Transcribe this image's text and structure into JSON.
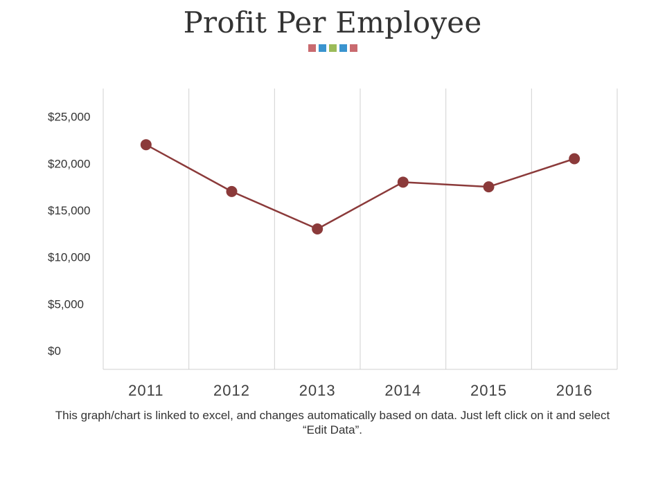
{
  "page": {
    "title": "Profit Per Employee",
    "note": "This graph/chart is linked to excel, and changes automatically based on data. Just left click on it and select “Edit Data”."
  },
  "decor": {
    "dot_colors": [
      "#c96a6f",
      "#3a94cf",
      "#9bbb59",
      "#3a94cf",
      "#c96a6f"
    ]
  },
  "colors": {
    "series": "#8b3a3a",
    "grid": "#d0d0d0",
    "axis_text": "#333333",
    "x_tick_text": "#404040"
  },
  "chart_data": {
    "type": "line",
    "title": "Profit Per Employee",
    "xlabel": "",
    "ylabel": "",
    "categories": [
      "2011",
      "2012",
      "2013",
      "2014",
      "2015",
      "2016"
    ],
    "series": [
      {
        "name": "Profit Per Employee",
        "values": [
          22000,
          17000,
          13000,
          18000,
          17500,
          20500
        ]
      }
    ],
    "ylim": [
      -2000,
      28000
    ],
    "yticks": [
      0,
      5000,
      10000,
      15000,
      20000,
      25000
    ],
    "ytick_labels": [
      "$0",
      "$5,000",
      "$10,000",
      "$15,000",
      "$20,000",
      "$25,000"
    ],
    "grid": "vertical",
    "legend": "none"
  }
}
